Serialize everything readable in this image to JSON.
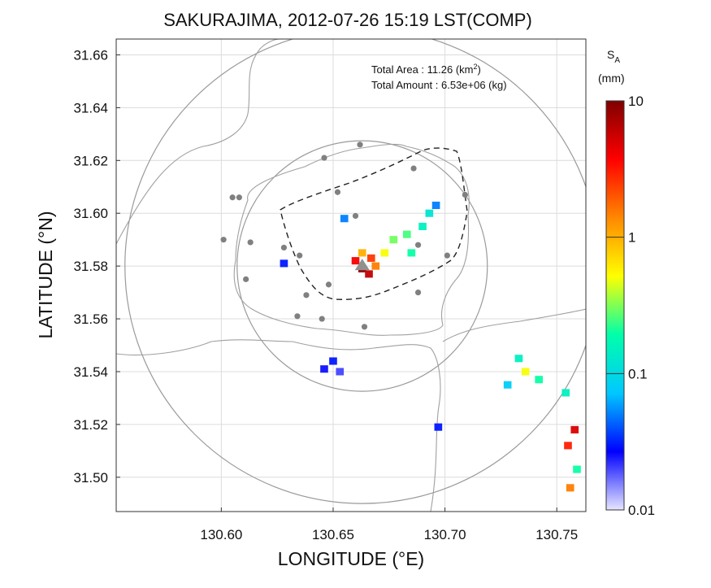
{
  "chart_data": {
    "type": "heatmap",
    "title": "SAKURAJIMA, 2012-07-26 15:19 LST(COMP)",
    "xlabel": "LONGITUDE (°E)",
    "ylabel": "LATITUDE (°N)",
    "xlim": [
      130.553,
      130.763
    ],
    "ylim": [
      31.487,
      31.666
    ],
    "x_ticks": [
      130.6,
      130.65,
      130.7,
      130.75
    ],
    "x_tick_labels": [
      "130.60",
      "130.65",
      "130.70",
      "130.75"
    ],
    "y_ticks": [
      31.5,
      31.52,
      31.54,
      31.56,
      31.58,
      31.6,
      31.62,
      31.64,
      31.66
    ],
    "y_tick_labels": [
      "31.50",
      "31.52",
      "31.54",
      "31.56",
      "31.58",
      "31.60",
      "31.62",
      "31.64",
      "31.66"
    ],
    "grid": true,
    "info": {
      "area_label": "Total Area   : 11.26 (km",
      "area_sup": "2",
      "area_close": ")",
      "amount_label": "Total Amount : 6.53e+06 (kg)"
    },
    "colorbar": {
      "title_main": "S",
      "title_sub": "A",
      "unit": "(mm)",
      "scale": "log",
      "range": [
        0.01,
        10
      ],
      "tick_values": [
        10,
        1,
        0.1,
        0.01
      ],
      "tick_labels": [
        "10",
        "1",
        "0.1",
        "0.01"
      ],
      "colors": [
        "#e6e6ff",
        "#0000ff",
        "#00c8ff",
        "#00ffaa",
        "#ffff00",
        "#ff8800",
        "#ff0000",
        "#800000"
      ]
    },
    "vent": {
      "lon": 130.663,
      "lat": 31.58
    },
    "stations": [
      [
        130.662,
        31.626
      ],
      [
        130.646,
        31.621
      ],
      [
        130.608,
        31.606
      ],
      [
        130.605,
        31.606
      ],
      [
        130.652,
        31.608
      ],
      [
        130.686,
        31.617
      ],
      [
        130.709,
        31.607
      ],
      [
        130.66,
        31.599
      ],
      [
        130.601,
        31.59
      ],
      [
        130.613,
        31.589
      ],
      [
        130.628,
        31.587
      ],
      [
        130.635,
        31.584
      ],
      [
        130.688,
        31.588
      ],
      [
        130.701,
        31.584
      ],
      [
        130.611,
        31.575
      ],
      [
        130.648,
        31.573
      ],
      [
        130.638,
        31.569
      ],
      [
        130.688,
        31.57
      ],
      [
        130.634,
        31.561
      ],
      [
        130.645,
        31.56
      ],
      [
        130.664,
        31.557
      ]
    ],
    "ash_cells": [
      {
        "lon": 130.663,
        "lat": 31.579,
        "value": 9.0
      },
      {
        "lon": 130.666,
        "lat": 31.577,
        "value": 6.0
      },
      {
        "lon": 130.66,
        "lat": 31.582,
        "value": 4.0
      },
      {
        "lon": 130.667,
        "lat": 31.583,
        "value": 2.5
      },
      {
        "lon": 130.669,
        "lat": 31.58,
        "value": 1.5
      },
      {
        "lon": 130.663,
        "lat": 31.585,
        "value": 1.0
      },
      {
        "lon": 130.673,
        "lat": 31.585,
        "value": 0.5
      },
      {
        "lon": 130.677,
        "lat": 31.59,
        "value": 0.3
      },
      {
        "lon": 130.683,
        "lat": 31.592,
        "value": 0.25
      },
      {
        "lon": 130.69,
        "lat": 31.595,
        "value": 0.15
      },
      {
        "lon": 130.693,
        "lat": 31.6,
        "value": 0.12
      },
      {
        "lon": 130.685,
        "lat": 31.585,
        "value": 0.2
      },
      {
        "lon": 130.696,
        "lat": 31.603,
        "value": 0.05
      },
      {
        "lon": 130.655,
        "lat": 31.598,
        "value": 0.05
      },
      {
        "lon": 130.628,
        "lat": 31.581,
        "value": 0.03
      },
      {
        "lon": 130.65,
        "lat": 31.544,
        "value": 0.03
      },
      {
        "lon": 130.653,
        "lat": 31.54,
        "value": 0.02
      },
      {
        "lon": 130.646,
        "lat": 31.541,
        "value": 0.025
      },
      {
        "lon": 130.697,
        "lat": 31.519,
        "value": 0.03
      },
      {
        "lon": 130.733,
        "lat": 31.545,
        "value": 0.15
      },
      {
        "lon": 130.736,
        "lat": 31.54,
        "value": 0.5
      },
      {
        "lon": 130.742,
        "lat": 31.537,
        "value": 0.2
      },
      {
        "lon": 130.728,
        "lat": 31.535,
        "value": 0.08
      },
      {
        "lon": 130.754,
        "lat": 31.532,
        "value": 0.15
      },
      {
        "lon": 130.758,
        "lat": 31.518,
        "value": 5.0
      },
      {
        "lon": 130.755,
        "lat": 31.512,
        "value": 3.0
      },
      {
        "lon": 130.759,
        "lat": 31.503,
        "value": 0.2
      },
      {
        "lon": 130.756,
        "lat": 31.496,
        "value": 1.5
      }
    ]
  }
}
